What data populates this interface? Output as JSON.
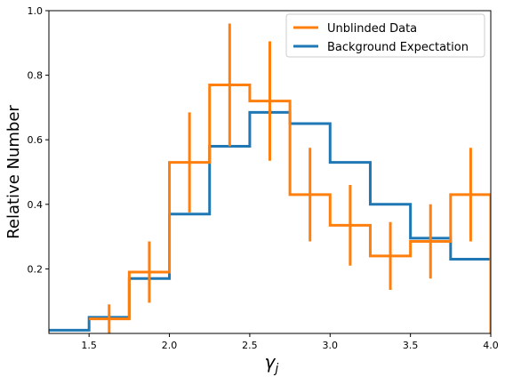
{
  "chart_data": {
    "type": "line",
    "title": "",
    "xlabel": "γ",
    "xlabel_subscript": "j",
    "ylabel": "Relative Number",
    "xlim": [
      1.25,
      4.0
    ],
    "ylim": [
      0.0,
      1.0
    ],
    "xticks": [
      "1.5",
      "2.0",
      "2.5",
      "3.0",
      "3.5",
      "4.0"
    ],
    "yticks": [
      "0.2",
      "0.4",
      "0.6",
      "0.8",
      "1.0"
    ],
    "bin_edges": [
      1.25,
      1.5,
      1.75,
      2.0,
      2.25,
      2.5,
      2.75,
      3.0,
      3.25,
      3.5,
      3.75,
      4.0
    ],
    "grid": false,
    "legend_position": "top-right",
    "series": [
      {
        "name": "Unblinded Data",
        "color": "#ff7f0e",
        "style": "step-with-errorbars",
        "values": [
          null,
          0.045,
          0.19,
          0.53,
          0.77,
          0.72,
          0.43,
          0.335,
          0.24,
          0.285,
          0.43
        ],
        "errors": [
          null,
          0.045,
          0.095,
          0.155,
          0.19,
          0.185,
          0.145,
          0.125,
          0.105,
          0.115,
          0.145
        ]
      },
      {
        "name": "Background Expectation",
        "color": "#1f77b4",
        "style": "step",
        "values": [
          0.01,
          0.05,
          0.17,
          0.37,
          0.58,
          0.685,
          0.65,
          0.53,
          0.4,
          0.295,
          0.23
        ]
      }
    ]
  }
}
